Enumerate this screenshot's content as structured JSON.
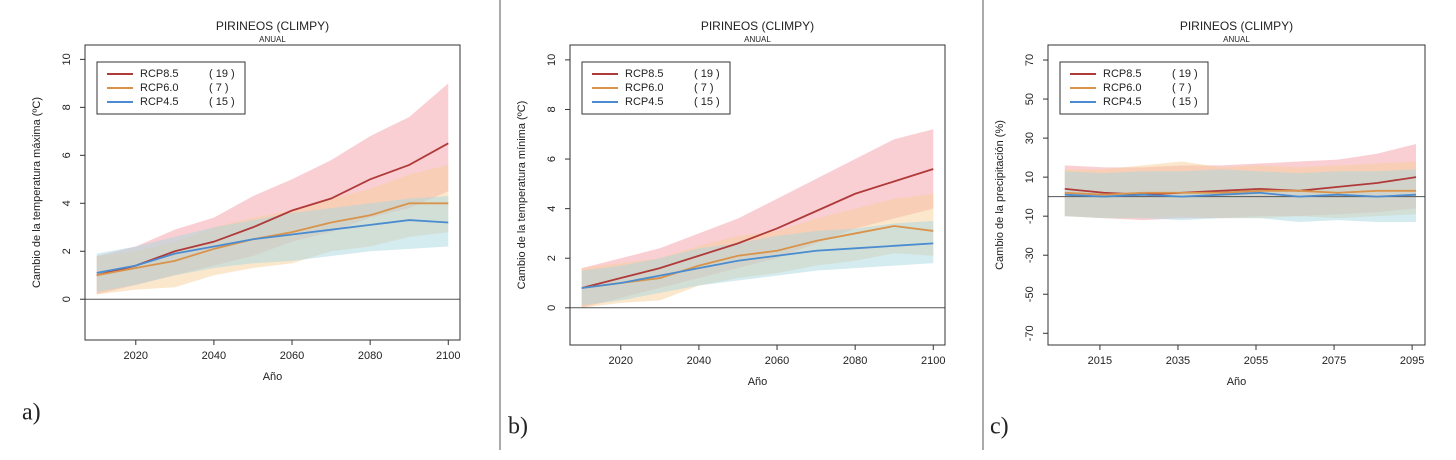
{
  "chart_data": [
    {
      "type": "line",
      "panel_label": "a)",
      "title": "PIRINEOS (CLIMPY)",
      "subtitle": "ANUAL",
      "x_label": "Año",
      "y_label": "Cambio  de la temperatura máxima (ºC)",
      "x": [
        2010,
        2020,
        2030,
        2040,
        2050,
        2060,
        2070,
        2080,
        2090,
        2100
      ],
      "xlim": [
        2007,
        2103
      ],
      "xticks": [
        2020,
        2040,
        2060,
        2080,
        2100
      ],
      "ylim": [
        -1.7,
        10.6
      ],
      "yticks": [
        0,
        2,
        4,
        6,
        8,
        10
      ],
      "hline": 0,
      "series": [
        {
          "name": "RCP8.5",
          "members": {
            "value": 19,
            "label": "( 19 )"
          },
          "color": "#b03a3a",
          "band_color": "#f4a0a8",
          "values": [
            1.0,
            1.4,
            2.0,
            2.4,
            3.0,
            3.7,
            4.2,
            5.0,
            5.6,
            6.5
          ],
          "lower": [
            0.2,
            0.6,
            1.0,
            1.4,
            1.8,
            2.4,
            2.8,
            3.4,
            3.8,
            4.5
          ],
          "upper": [
            1.8,
            2.2,
            2.9,
            3.4,
            4.3,
            5.0,
            5.8,
            6.8,
            7.6,
            9.0
          ]
        },
        {
          "name": "RCP6.0",
          "members": {
            "value": 7,
            "label": "(  7 )"
          },
          "color": "#d9934a",
          "band_color": "#f7cf9a",
          "values": [
            1.0,
            1.3,
            1.6,
            2.1,
            2.5,
            2.8,
            3.2,
            3.5,
            4.0,
            4.0
          ],
          "lower": [
            0.2,
            0.4,
            0.5,
            1.0,
            1.3,
            1.5,
            2.0,
            2.2,
            2.6,
            2.8
          ],
          "upper": [
            1.8,
            2.0,
            2.4,
            3.0,
            3.4,
            3.7,
            4.2,
            4.6,
            5.2,
            5.6
          ]
        },
        {
          "name": "RCP4.5",
          "members": {
            "value": 15,
            "label": "( 15 )"
          },
          "color": "#4a8ccf",
          "band_color": "#a9d8e0",
          "values": [
            1.1,
            1.4,
            1.9,
            2.2,
            2.5,
            2.7,
            2.9,
            3.1,
            3.3,
            3.2
          ],
          "lower": [
            0.3,
            0.6,
            1.0,
            1.3,
            1.5,
            1.6,
            1.8,
            2.0,
            2.1,
            2.2
          ],
          "upper": [
            1.9,
            2.2,
            2.6,
            3.0,
            3.3,
            3.6,
            3.8,
            4.0,
            4.2,
            4.3
          ]
        }
      ]
    },
    {
      "type": "line",
      "panel_label": "b)",
      "title": "PIRINEOS (CLIMPY)",
      "subtitle": "ANUAL",
      "x_label": "Año",
      "y_label": "Cambio de la temperatura mínima (ºC)",
      "x": [
        2010,
        2020,
        2030,
        2040,
        2050,
        2060,
        2070,
        2080,
        2090,
        2100
      ],
      "xlim": [
        2007,
        2103
      ],
      "xticks": [
        2020,
        2040,
        2060,
        2080,
        2100
      ],
      "ylim": [
        -1.5,
        10.6
      ],
      "yticks": [
        0,
        2,
        4,
        6,
        8,
        10
      ],
      "hline": 0,
      "series": [
        {
          "name": "RCP8.5",
          "members": {
            "value": 19,
            "label": "( 19 )"
          },
          "color": "#b03a3a",
          "band_color": "#f4a0a8",
          "values": [
            0.8,
            1.2,
            1.6,
            2.1,
            2.6,
            3.2,
            3.9,
            4.6,
            5.1,
            5.6
          ],
          "lower": [
            0.0,
            0.4,
            0.8,
            1.2,
            1.6,
            2.0,
            2.6,
            3.2,
            3.6,
            4.0
          ],
          "upper": [
            1.6,
            2.0,
            2.4,
            3.0,
            3.6,
            4.4,
            5.2,
            6.0,
            6.8,
            7.2
          ]
        },
        {
          "name": "RCP6.0",
          "members": {
            "value": 7,
            "label": "(  7 )"
          },
          "color": "#d9934a",
          "band_color": "#f7cf9a",
          "values": [
            0.8,
            1.0,
            1.2,
            1.7,
            2.1,
            2.3,
            2.7,
            3.0,
            3.3,
            3.1
          ],
          "lower": [
            0.0,
            0.2,
            0.3,
            0.9,
            1.2,
            1.4,
            1.7,
            1.9,
            2.2,
            2.1
          ],
          "upper": [
            1.6,
            1.8,
            2.0,
            2.5,
            2.9,
            3.1,
            3.6,
            4.0,
            4.4,
            4.6
          ]
        },
        {
          "name": "RCP4.5",
          "members": {
            "value": 15,
            "label": "( 15 )"
          },
          "color": "#4a8ccf",
          "band_color": "#a9d8e0",
          "values": [
            0.8,
            1.0,
            1.3,
            1.6,
            1.9,
            2.1,
            2.3,
            2.4,
            2.5,
            2.6
          ],
          "lower": [
            0.1,
            0.3,
            0.6,
            0.9,
            1.1,
            1.3,
            1.5,
            1.6,
            1.7,
            1.8
          ],
          "upper": [
            1.5,
            1.7,
            2.0,
            2.4,
            2.6,
            2.9,
            3.1,
            3.2,
            3.4,
            3.5
          ]
        }
      ]
    },
    {
      "type": "line",
      "panel_label": "c)",
      "title": "PIRINEOS (CLIMPY)",
      "subtitle": "ANUAL",
      "x_label": "Año",
      "y_label": "Cambio de la precipitación (%)",
      "x": [
        2006,
        2016,
        2026,
        2036,
        2046,
        2056,
        2066,
        2076,
        2086,
        2096
      ],
      "xlim": [
        2001.7,
        2098.3
      ],
      "xticks": [
        2015,
        2035,
        2055,
        2075,
        2095
      ],
      "ylim": [
        -76,
        77.7
      ],
      "yticks": [
        -70,
        -50,
        -30,
        -10,
        10,
        30,
        50,
        70
      ],
      "hline": 0,
      "series": [
        {
          "name": "RCP8.5",
          "members": {
            "value": 19,
            "label": "( 19 )"
          },
          "color": "#b03a3a",
          "band_color": "#f4a0a8",
          "values": [
            4,
            2,
            1,
            2,
            3,
            4,
            3,
            5,
            7,
            10
          ],
          "lower": [
            -10,
            -11,
            -12,
            -11,
            -11,
            -10,
            -10,
            -9,
            -8,
            -6
          ],
          "upper": [
            16,
            15,
            15,
            16,
            16,
            17,
            18,
            19,
            22,
            27
          ]
        },
        {
          "name": "RCP6.0",
          "members": {
            "value": 7,
            "label": "(  7 )"
          },
          "color": "#d9934a",
          "band_color": "#f7cf9a",
          "values": [
            2,
            1,
            2,
            2,
            2,
            3,
            3,
            2,
            3,
            3
          ],
          "lower": [
            -10,
            -11,
            -11,
            -10,
            -11,
            -11,
            -10,
            -11,
            -10,
            -9
          ],
          "upper": [
            14,
            14,
            16,
            18,
            15,
            16,
            15,
            16,
            17,
            18
          ]
        },
        {
          "name": "RCP4.5",
          "members": {
            "value": 15,
            "label": "( 15 )"
          },
          "color": "#4a8ccf",
          "band_color": "#a9d8e0",
          "values": [
            1,
            0,
            1,
            0,
            1,
            2,
            0,
            1,
            0,
            1
          ],
          "lower": [
            -10,
            -11,
            -11,
            -12,
            -11,
            -11,
            -13,
            -12,
            -13,
            -13
          ],
          "upper": [
            13,
            12,
            13,
            13,
            14,
            13,
            12,
            13,
            13,
            14
          ]
        }
      ]
    }
  ]
}
